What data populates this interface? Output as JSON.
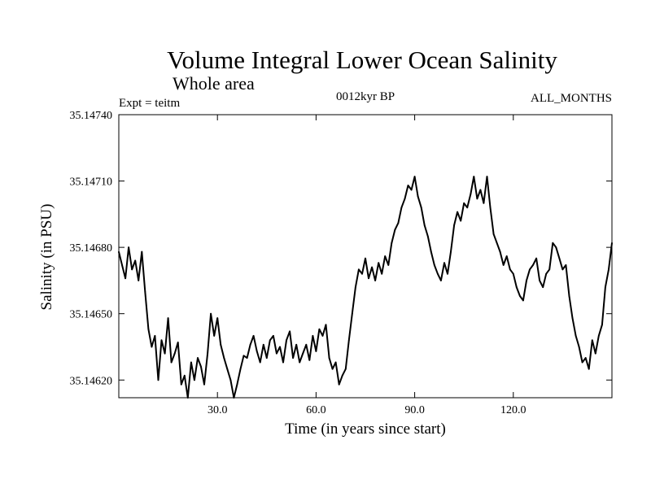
{
  "chart_data": {
    "type": "line",
    "title": "Volume Integral Lower Ocean Salinity",
    "subtitle": "Whole area",
    "experiment": "Expt = teitm",
    "period": "0012kyr BP",
    "months": "ALL_MONTHS",
    "xlabel": "Time (in years since start)",
    "ylabel": "Salinity (in PSU)",
    "xlim": [
      0,
      150
    ],
    "ylim": [
      35.14612,
      35.1474
    ],
    "x_ticks": [
      {
        "value": 30,
        "label": "30.0"
      },
      {
        "value": 60,
        "label": "60.0"
      },
      {
        "value": 90,
        "label": "90.0"
      },
      {
        "value": 120,
        "label": "120.0"
      }
    ],
    "y_ticks": [
      {
        "value": 35.1462,
        "label": "35.14620"
      },
      {
        "value": 35.1465,
        "label": "35.14650"
      },
      {
        "value": 35.1468,
        "label": "35.14680"
      },
      {
        "value": 35.1471,
        "label": "35.14710"
      },
      {
        "value": 35.1474,
        "label": "35.14740"
      }
    ],
    "grid": false,
    "series": [
      {
        "name": "salinity",
        "color": "#000000",
        "x": [
          0,
          1,
          2,
          3,
          4,
          5,
          6,
          7,
          8,
          9,
          10,
          11,
          12,
          13,
          14,
          15,
          16,
          17,
          18,
          19,
          20,
          21,
          22,
          23,
          24,
          25,
          26,
          27,
          28,
          29,
          30,
          31,
          32,
          33,
          34,
          35,
          36,
          37,
          38,
          39,
          40,
          41,
          42,
          43,
          44,
          45,
          46,
          47,
          48,
          49,
          50,
          51,
          52,
          53,
          54,
          55,
          56,
          57,
          58,
          59,
          60,
          61,
          62,
          63,
          64,
          65,
          66,
          67,
          68,
          69,
          70,
          71,
          72,
          73,
          74,
          75,
          76,
          77,
          78,
          79,
          80,
          81,
          82,
          83,
          84,
          85,
          86,
          87,
          88,
          89,
          90,
          91,
          92,
          93,
          94,
          95,
          96,
          97,
          98,
          99,
          100,
          101,
          102,
          103,
          104,
          105,
          106,
          107,
          108,
          109,
          110,
          111,
          112,
          113,
          114,
          115,
          116,
          117,
          118,
          119,
          120,
          121,
          122,
          123,
          124,
          125,
          126,
          127,
          128,
          129,
          130,
          131,
          132,
          133,
          134,
          135,
          136,
          137,
          138,
          139,
          140,
          141,
          142,
          143,
          144,
          145,
          146,
          147,
          148,
          149,
          150
        ],
        "values": [
          35.14678,
          35.14672,
          35.14666,
          35.1468,
          35.1467,
          35.14674,
          35.14665,
          35.14678,
          35.1466,
          35.14643,
          35.14635,
          35.1464,
          35.1462,
          35.14638,
          35.14632,
          35.14648,
          35.14628,
          35.14632,
          35.14637,
          35.14618,
          35.14622,
          35.14612,
          35.14628,
          35.1462,
          35.1463,
          35.14626,
          35.14618,
          35.14632,
          35.1465,
          35.1464,
          35.14648,
          35.14636,
          35.1463,
          35.14625,
          35.1462,
          35.14612,
          35.14618,
          35.14625,
          35.14631,
          35.1463,
          35.14636,
          35.1464,
          35.14633,
          35.14628,
          35.14636,
          35.1463,
          35.14638,
          35.1464,
          35.14632,
          35.14635,
          35.14628,
          35.14638,
          35.14642,
          35.1463,
          35.14636,
          35.14628,
          35.14632,
          35.14636,
          35.14629,
          35.1464,
          35.14633,
          35.14643,
          35.1464,
          35.14645,
          35.1463,
          35.14625,
          35.14628,
          35.14618,
          35.14622,
          35.14625,
          35.14638,
          35.1465,
          35.14662,
          35.1467,
          35.14668,
          35.14675,
          35.14666,
          35.14671,
          35.14665,
          35.14673,
          35.14668,
          35.14676,
          35.14672,
          35.14682,
          35.14688,
          35.14691,
          35.14698,
          35.14702,
          35.14708,
          35.14706,
          35.14712,
          35.14703,
          35.14698,
          35.1469,
          35.14685,
          35.14678,
          35.14672,
          35.14668,
          35.14665,
          35.14673,
          35.14668,
          35.14678,
          35.1469,
          35.14696,
          35.14692,
          35.147,
          35.14698,
          35.14704,
          35.14712,
          35.14702,
          35.14706,
          35.147,
          35.14712,
          35.14698,
          35.14686,
          35.14682,
          35.14678,
          35.14672,
          35.14676,
          35.1467,
          35.14668,
          35.14662,
          35.14658,
          35.14656,
          35.14665,
          35.1467,
          35.14672,
          35.14675,
          35.14665,
          35.14662,
          35.14668,
          35.1467,
          35.14682,
          35.1468,
          35.14675,
          35.1467,
          35.14672,
          35.14658,
          35.14648,
          35.1464,
          35.14635,
          35.14628,
          35.1463,
          35.14625,
          35.14638,
          35.14632,
          35.1464,
          35.14645,
          35.14662,
          35.1467,
          35.14682
        ]
      }
    ]
  }
}
